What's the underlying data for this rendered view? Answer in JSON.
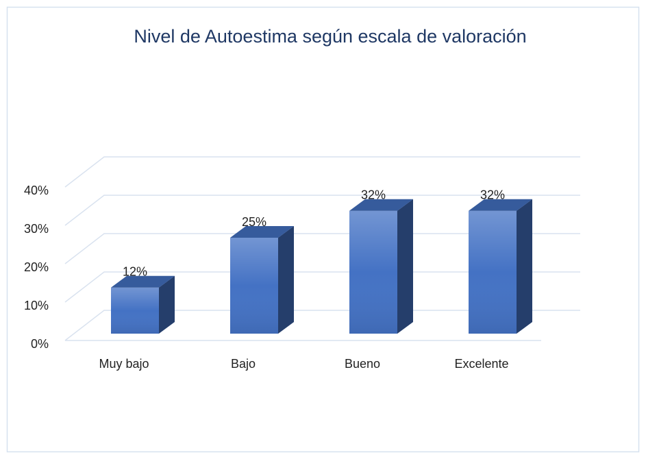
{
  "chart_data": {
    "type": "bar3d",
    "title": "Nivel de Autoestima según escala de valoración",
    "categories": [
      "Muy bajo",
      "Bajo",
      "Bueno",
      "Excelente"
    ],
    "values": [
      12,
      25,
      32,
      32
    ],
    "value_labels": [
      "12%",
      "25%",
      "32%",
      "32%"
    ],
    "color": "#4472c4",
    "ylim": [
      0,
      40
    ],
    "yticks": [
      {
        "value": 0,
        "label": "0%"
      },
      {
        "value": 10,
        "label": "10%"
      },
      {
        "value": 20,
        "label": "20%"
      },
      {
        "value": 30,
        "label": "30%"
      },
      {
        "value": 40,
        "label": "40%"
      }
    ],
    "grid": true
  }
}
